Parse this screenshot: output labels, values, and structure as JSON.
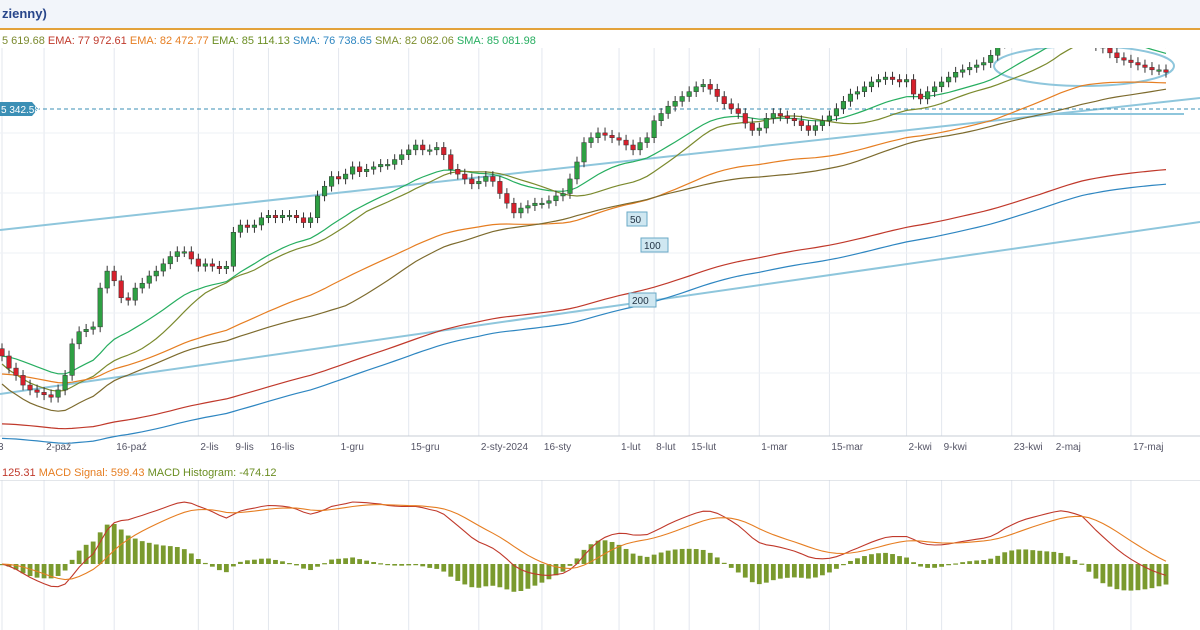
{
  "header": {
    "title": "zienny)"
  },
  "legend": [
    {
      "label": "",
      "value": "5 619.68",
      "color": "#7b8a2e"
    },
    {
      "label": "EMA:",
      "value": "77 972.61",
      "color": "#c0392b"
    },
    {
      "label": "EMA:",
      "value": "82 472.77",
      "color": "#e67e22"
    },
    {
      "label": "EMA:",
      "value": "85 114.13",
      "color": "#6b8e23"
    },
    {
      "label": "SMA:",
      "value": "76 738.65",
      "color": "#2e86c1"
    },
    {
      "label": "SMA:",
      "value": "82 082.06",
      "color": "#7d8f2e"
    },
    {
      "label": "SMA:",
      "value": "85 081.98",
      "color": "#27ae60"
    }
  ],
  "price_tag": "5 342.58",
  "macd_legend": [
    {
      "label": "",
      "value": "125.31",
      "color": "#c0392b"
    },
    {
      "label": "MACD Signal:",
      "value": "599.43",
      "color": "#e67e22"
    },
    {
      "label": "MACD Histogram:",
      "value": "-474.12",
      "color": "#6b8e23"
    }
  ],
  "chart_data": {
    "type": "candlestick",
    "y_range": [
      78500,
      86500
    ],
    "x_ticks": [
      {
        "label": "3",
        "i": 0
      },
      {
        "label": "2-paź",
        "i": 6
      },
      {
        "label": "16-paź",
        "i": 16
      },
      {
        "label": "2-lis",
        "i": 28
      },
      {
        "label": "9-lis",
        "i": 33
      },
      {
        "label": "16-lis",
        "i": 38
      },
      {
        "label": "1-gru",
        "i": 48
      },
      {
        "label": "15-gru",
        "i": 58
      },
      {
        "label": "2-sty-2024",
        "i": 68
      },
      {
        "label": "16-sty",
        "i": 77
      },
      {
        "label": "1-lut",
        "i": 88
      },
      {
        "label": "8-lut",
        "i": 93
      },
      {
        "label": "15-lut",
        "i": 98
      },
      {
        "label": "1-mar",
        "i": 108
      },
      {
        "label": "15-mar",
        "i": 118
      },
      {
        "label": "2-kwi",
        "i": 129
      },
      {
        "label": "9-kwi",
        "i": 134
      },
      {
        "label": "23-kwi",
        "i": 144
      },
      {
        "label": "2-maj",
        "i": 150
      },
      {
        "label": "17-maj",
        "i": 161
      }
    ],
    "closes": [
      80150,
      79900,
      79750,
      79550,
      79450,
      79400,
      79350,
      79300,
      79450,
      79750,
      80400,
      80650,
      80700,
      80750,
      81550,
      81900,
      81700,
      81350,
      81300,
      81550,
      81650,
      81800,
      81900,
      82050,
      82200,
      82300,
      82300,
      82150,
      82000,
      82050,
      82000,
      81950,
      82000,
      82700,
      82850,
      82800,
      82850,
      83000,
      83050,
      83000,
      83050,
      83050,
      83000,
      82900,
      83000,
      83450,
      83650,
      83850,
      83800,
      83900,
      84050,
      83950,
      84000,
      84050,
      84100,
      84100,
      84200,
      84300,
      84400,
      84500,
      84400,
      84400,
      84450,
      84300,
      84000,
      83900,
      83800,
      83700,
      83750,
      83850,
      83750,
      83500,
      83300,
      83100,
      83200,
      83250,
      83300,
      83300,
      83350,
      83450,
      83500,
      83800,
      84150,
      84550,
      84650,
      84750,
      84700,
      84650,
      84600,
      84500,
      84400,
      84550,
      84650,
      85000,
      85150,
      85300,
      85400,
      85500,
      85600,
      85700,
      85750,
      85650,
      85500,
      85350,
      85250,
      85150,
      84950,
      84800,
      84850,
      85050,
      85150,
      85100,
      85050,
      85000,
      84900,
      84800,
      84900,
      85000,
      85100,
      85250,
      85400,
      85550,
      85600,
      85700,
      85800,
      85850,
      85900,
      85850,
      85800,
      85850,
      85550,
      85450,
      85600,
      85700,
      85800,
      85900,
      86000,
      86050,
      86100,
      86150,
      86200,
      86350,
      86600,
      86850,
      86900,
      87000,
      87050,
      87100,
      87200,
      87300,
      87400,
      87450,
      87300,
      87250,
      87200,
      86700,
      86550,
      86500,
      86400,
      86300,
      86250,
      86200,
      86150,
      86100,
      86050,
      86050,
      86000
    ]
  }
}
